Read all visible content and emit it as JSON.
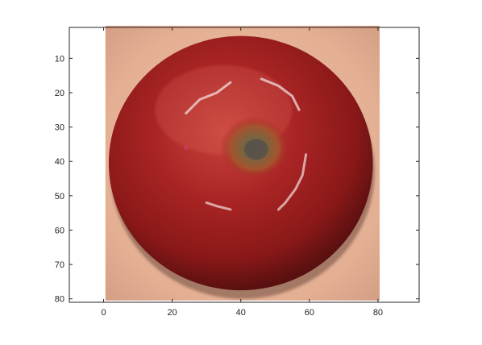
{
  "figure": {
    "background": "#ffffff",
    "axes": {
      "xlim": [
        -10,
        92
      ],
      "ylim": [
        81,
        1
      ],
      "y_reversed": true,
      "x_ticks": [
        0,
        20,
        40,
        60,
        80
      ],
      "y_ticks": [
        10,
        20,
        30,
        40,
        50,
        60,
        70,
        80
      ],
      "x_tick_labels": [
        "0",
        "20",
        "40",
        "60",
        "80"
      ],
      "y_tick_labels": [
        "10",
        "20",
        "30",
        "40",
        "50",
        "60",
        "70",
        "80"
      ],
      "grid": false,
      "box": true
    },
    "image": {
      "subject": "red-apple-top-view",
      "extent_x": [
        0.5,
        80.5
      ],
      "extent_y": [
        0.5,
        80.5
      ],
      "colors": {
        "apple_highlight": "#c23a35",
        "apple_mid": "#9e1f1f",
        "apple_dark": "#5a1010",
        "stem_cavity": "#6b5a3a",
        "background_skin": "#e7b49a",
        "streak": "#f1dede"
      }
    }
  }
}
